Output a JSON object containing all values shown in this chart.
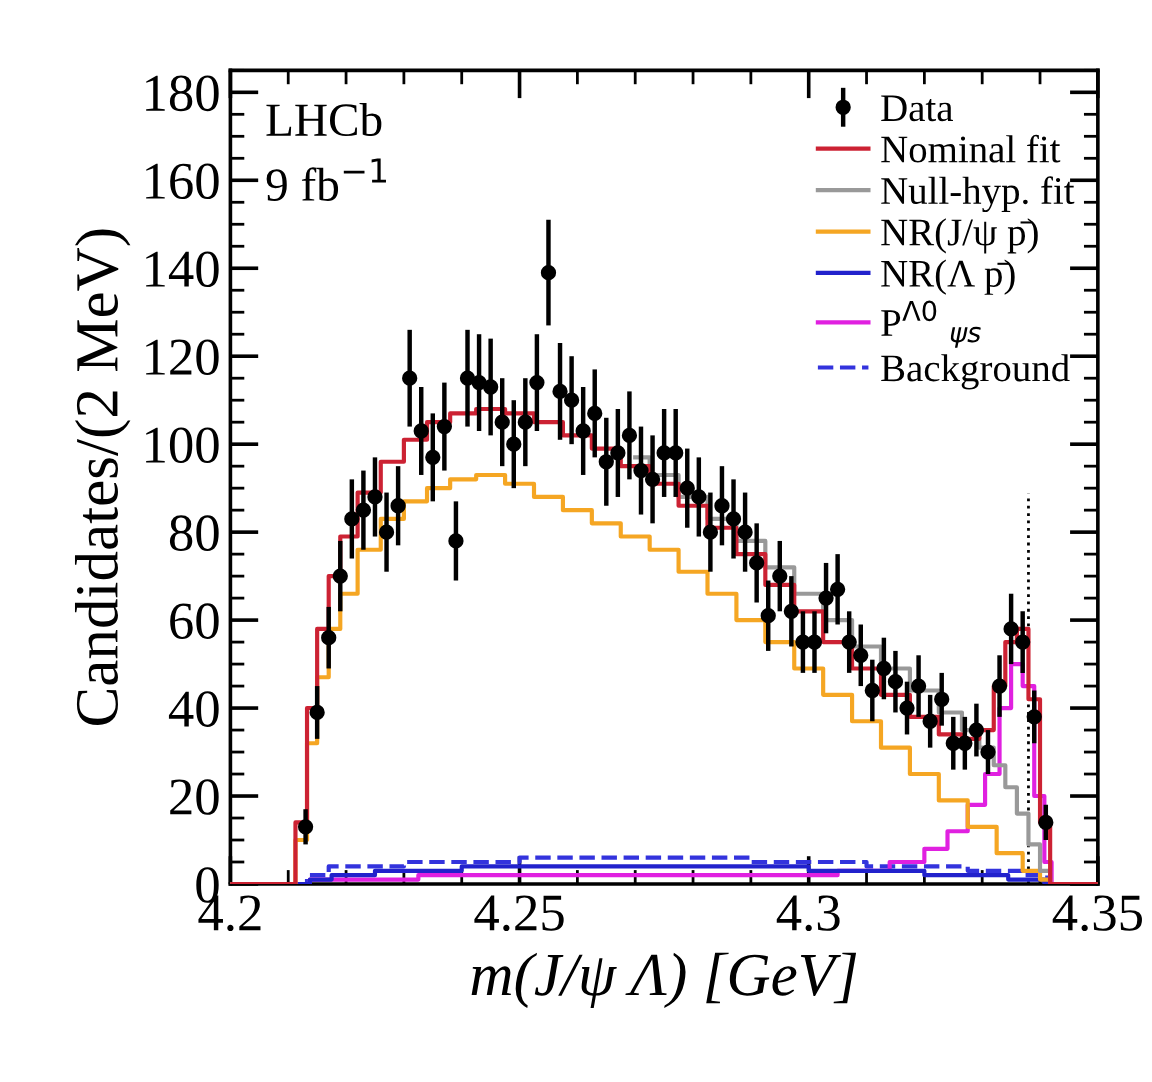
{
  "chart_data": {
    "type": "step",
    "xlabel": "m(J/ψ Λ) [GeV]",
    "ylabel": "Candidates/(2 MeV)",
    "xlim": [
      4.2,
      4.35
    ],
    "ylim": [
      0,
      185
    ],
    "xticks": [
      4.2,
      4.25,
      4.3,
      4.35
    ],
    "yticks": [
      0,
      20,
      40,
      60,
      80,
      100,
      120,
      140,
      160,
      180
    ],
    "annotations": [
      "LHCb",
      "9 fb$^{−1}$"
    ],
    "legend": "top right",
    "grid": false,
    "ref_lines": [
      {
        "axis": "x",
        "value": 4.338,
        "color": "#000000",
        "line_style": "dotted"
      }
    ],
    "series": [
      {
        "name": "Data",
        "type": "scatter",
        "color": "#000000",
        "marker": "circle",
        "x": [
          4.213,
          4.215,
          4.217,
          4.219,
          4.221,
          4.223,
          4.225,
          4.227,
          4.229,
          4.231,
          4.233,
          4.235,
          4.237,
          4.239,
          4.241,
          4.243,
          4.245,
          4.247,
          4.249,
          4.251,
          4.253,
          4.255,
          4.257,
          4.259,
          4.261,
          4.263,
          4.265,
          4.267,
          4.269,
          4.271,
          4.273,
          4.275,
          4.277,
          4.279,
          4.281,
          4.283,
          4.285,
          4.287,
          4.289,
          4.291,
          4.293,
          4.295,
          4.297,
          4.299,
          4.301,
          4.303,
          4.305,
          4.307,
          4.309,
          4.311,
          4.313,
          4.315,
          4.317,
          4.319,
          4.321,
          4.323,
          4.325,
          4.327,
          4.329,
          4.331,
          4.333,
          4.335,
          4.337,
          4.339,
          4.341
        ],
        "values": [
          13,
          39,
          56,
          70,
          83,
          85,
          88,
          80,
          86,
          115,
          103,
          97,
          104,
          78,
          115,
          114,
          113,
          105,
          100,
          105,
          114,
          139,
          112,
          110,
          103,
          107,
          96,
          98,
          102,
          94,
          92,
          98,
          98,
          90,
          88,
          80,
          86,
          83,
          80,
          73,
          61,
          70,
          62,
          55,
          55,
          65,
          67,
          55,
          52,
          44,
          49,
          46,
          40,
          45,
          37,
          42,
          32,
          32,
          35,
          30,
          45,
          58,
          55,
          38,
          14
        ],
        "errors": [
          4,
          6,
          7,
          8,
          9,
          9,
          9,
          9,
          9,
          11,
          10,
          10,
          10,
          9,
          11,
          11,
          11,
          10,
          10,
          10,
          11,
          12,
          11,
          10,
          10,
          10,
          10,
          10,
          10,
          10,
          10,
          10,
          10,
          9,
          9,
          9,
          9,
          9,
          9,
          9,
          8,
          8,
          8,
          7,
          7,
          8,
          8,
          7,
          7,
          7,
          7,
          7,
          6,
          7,
          6,
          6,
          6,
          6,
          6,
          5,
          7,
          8,
          7,
          6,
          4
        ]
      },
      {
        "name": "Nominal fit",
        "color": "#cc2233",
        "line_style": "solid",
        "x": [
          4.2,
          4.21,
          4.2125,
          4.214,
          4.216,
          4.218,
          4.22,
          4.224,
          4.228,
          4.232,
          4.236,
          4.24,
          4.245,
          4.25,
          4.255,
          4.26,
          4.265,
          4.27,
          4.275,
          4.28,
          4.285,
          4.29,
          4.295,
          4.3,
          4.305,
          4.31,
          4.315,
          4.32,
          4.325,
          4.328,
          4.331,
          4.333,
          4.335,
          4.337,
          4.339,
          4.341,
          4.3425,
          4.35
        ],
        "values": [
          0,
          0,
          14,
          40,
          58,
          70,
          79,
          89,
          96,
          101,
          105,
          107,
          108,
          107,
          105,
          102,
          99,
          95,
          91,
          86,
          81,
          75,
          68,
          62,
          55,
          49,
          43,
          38,
          34,
          33,
          35,
          45,
          55,
          58,
          42,
          14,
          0,
          0
        ]
      },
      {
        "name": "Null-hyp. fit",
        "color": "#999999",
        "line_style": "solid",
        "x": [
          4.27,
          4.275,
          4.28,
          4.285,
          4.29,
          4.295,
          4.3,
          4.305,
          4.31,
          4.315,
          4.32,
          4.325,
          4.328,
          4.331,
          4.333,
          4.335,
          4.337,
          4.339,
          4.341,
          4.3425,
          4.35
        ],
        "values": [
          97,
          93,
          88,
          83,
          78,
          72,
          66,
          60,
          54,
          49,
          44,
          39,
          35,
          31,
          27,
          22,
          16,
          9,
          3,
          0,
          0
        ]
      },
      {
        "name": "NR(J/ψ p̄)",
        "color": "#f5a623",
        "line_style": "solid",
        "x": [
          4.2,
          4.21,
          4.2125,
          4.214,
          4.216,
          4.218,
          4.22,
          4.224,
          4.228,
          4.232,
          4.236,
          4.24,
          4.245,
          4.25,
          4.255,
          4.26,
          4.265,
          4.27,
          4.275,
          4.28,
          4.285,
          4.29,
          4.295,
          4.3,
          4.305,
          4.31,
          4.315,
          4.32,
          4.325,
          4.33,
          4.335,
          4.339,
          4.341,
          4.3425,
          4.35
        ],
        "values": [
          0,
          0,
          10,
          32,
          47,
          58,
          66,
          76,
          83,
          87,
          90,
          92,
          93,
          91,
          88,
          85,
          82,
          79,
          76,
          71,
          66,
          60,
          55,
          49,
          43,
          37,
          31,
          25,
          19,
          13,
          7,
          3,
          1,
          0,
          0
        ]
      },
      {
        "name": "NR(Λ p̄)",
        "color": "#2222cc",
        "line_style": "solid",
        "x": [
          4.2,
          4.2125,
          4.215,
          4.22,
          4.23,
          4.25,
          4.27,
          4.29,
          4.31,
          4.33,
          4.339,
          4.3425,
          4.35
        ],
        "values": [
          0,
          0,
          1,
          2,
          3,
          4,
          4,
          4,
          3,
          2,
          1,
          0,
          0
        ]
      },
      {
        "name": "P$^{Λ0}$ $_{ψs}$",
        "color": "#e020e0",
        "line_style": "solid",
        "x": [
          4.2,
          4.2125,
          4.215,
          4.25,
          4.3,
          4.31,
          4.318,
          4.322,
          4.326,
          4.329,
          4.332,
          4.334,
          4.336,
          4.338,
          4.34,
          4.3415,
          4.3425,
          4.35
        ],
        "values": [
          0,
          0,
          1,
          2,
          2,
          3,
          5,
          8,
          12,
          18,
          25,
          40,
          50,
          45,
          20,
          5,
          0,
          0
        ]
      },
      {
        "name": "Background",
        "color": "#3333dd",
        "line_style": "dashed",
        "x": [
          4.2,
          4.2125,
          4.214,
          4.22,
          4.24,
          4.26,
          4.28,
          4.3,
          4.32,
          4.335,
          4.34,
          4.3425,
          4.35
        ],
        "values": [
          0,
          0,
          2,
          4,
          5,
          6,
          6,
          5,
          4,
          3,
          2,
          0,
          0
        ]
      }
    ]
  }
}
